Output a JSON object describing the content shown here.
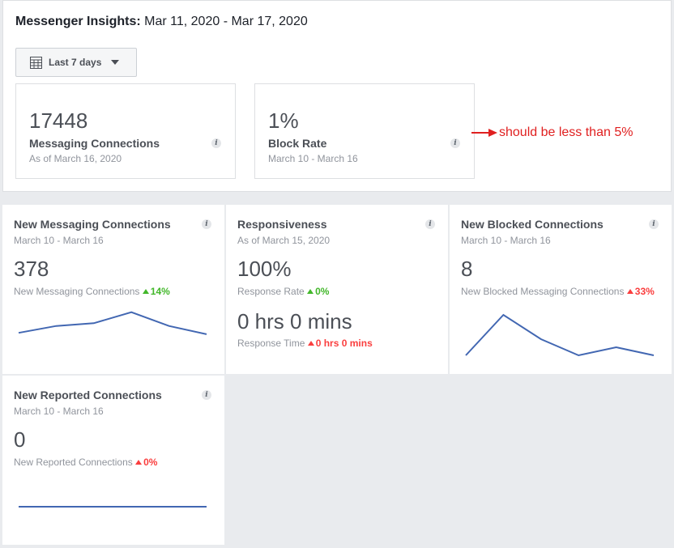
{
  "header": {
    "title_bold": "Messenger Insights:",
    "date_range": "Mar 11, 2020 - Mar 17, 2020",
    "range_button": {
      "label": "Last 7 days",
      "icon": "calendar-icon"
    }
  },
  "summary_cards": [
    {
      "value": "17448",
      "label": "Messaging Connections",
      "sub": "As of March 16, 2020"
    },
    {
      "value": "1%",
      "label": "Block Rate",
      "sub": "March 10 - March 16"
    }
  ],
  "annotation": {
    "text": "should be less than 5%",
    "color": "#e02020"
  },
  "tiles": {
    "new_messaging": {
      "title": "New Messaging Connections",
      "range": "March 10 - March 16",
      "value": "378",
      "metric_label": "New Messaging Connections",
      "change": "14%"
    },
    "responsiveness": {
      "title": "Responsiveness",
      "range": "As of March 15, 2020",
      "value": "100%",
      "metric_label": "Response Rate",
      "change": "0%",
      "value2": "0 hrs 0 mins",
      "metric_label2": "Response Time",
      "change2": "0 hrs 0 mins"
    },
    "new_blocked": {
      "title": "New Blocked Connections",
      "range": "March 10 - March 16",
      "value": "8",
      "metric_label": "New Blocked Messaging Connections",
      "change": "33%"
    },
    "new_reported": {
      "title": "New Reported Connections",
      "range": "March 10 - March 16",
      "value": "0",
      "metric_label": "New Reported Connections",
      "change": "0%"
    }
  },
  "colors": {
    "line": "#4267b2",
    "positive": "#42b72a",
    "negative": "#fa3e3e"
  },
  "sparklines": {
    "new_messaging": [
      0.2,
      0.45,
      0.55,
      0.95,
      0.45,
      0.15
    ],
    "new_blocked": [
      0.0,
      1.0,
      0.4,
      0.0,
      0.2,
      0.0
    ],
    "new_reported": [
      0,
      0,
      0,
      0,
      0,
      0
    ]
  }
}
